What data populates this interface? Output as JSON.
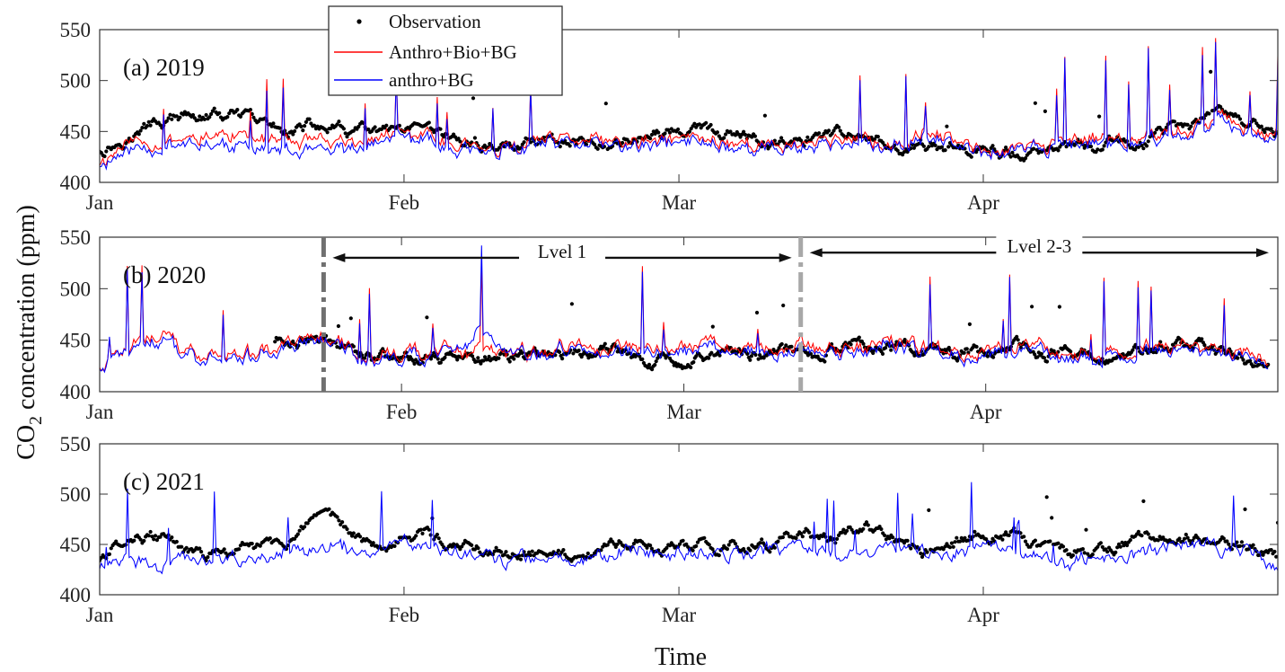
{
  "figure": {
    "ylabel_main": "CO",
    "ylabel_sub": "2",
    "ylabel_rest": " concentration (ppm)",
    "xlabel": "Time"
  },
  "legend": {
    "position": "top, above panel (a), left of centre",
    "entries": [
      {
        "label": "Observation",
        "style": "dots",
        "color": "#000000"
      },
      {
        "label": "Anthro+Bio+BG",
        "style": "line",
        "color": "#ff0000"
      },
      {
        "label": "anthro+BG",
        "style": "line",
        "color": "#0000ff"
      }
    ]
  },
  "colors": {
    "observation": "#000000",
    "anthro_bio_bg": "#ff0000",
    "anthro_bg": "#0000ff",
    "level1_line": "#707070",
    "level23_line": "#a8a8a8"
  },
  "chart_data": [
    {
      "type": "line",
      "panel_label": "(a) 2019",
      "x_axis": "day of year, hourly data",
      "xlim": [
        1,
        121
      ],
      "x_ticks": [
        {
          "label": "Jan",
          "value": 1
        },
        {
          "label": "Feb",
          "value": 32
        },
        {
          "label": "Mar",
          "value": 60
        },
        {
          "label": "Apr",
          "value": 91
        }
      ],
      "ylim": [
        400,
        550
      ],
      "y_ticks": [
        400,
        450,
        500,
        550
      ],
      "grid": false,
      "series": [
        {
          "name": "Observation",
          "style": "dots",
          "x": [
            1,
            4,
            7,
            10,
            13,
            16,
            19,
            22,
            25,
            28,
            31,
            34,
            37,
            40,
            43,
            46,
            49,
            52,
            55,
            58,
            61,
            64,
            67,
            70,
            73,
            76,
            79,
            82,
            85,
            88,
            91,
            94,
            97,
            100,
            103,
            106,
            109,
            112,
            115,
            118,
            121
          ],
          "values": [
            432,
            445,
            458,
            463,
            465,
            460,
            452,
            455,
            450,
            448,
            446,
            444,
            440,
            436,
            438,
            443,
            441,
            442,
            444,
            446,
            452,
            447,
            440,
            438,
            441,
            443,
            440,
            438,
            436,
            434,
            430,
            428,
            430,
            432,
            436,
            440,
            445,
            452,
            470,
            460,
            445
          ]
        },
        {
          "name": "Anthro+Bio+BG",
          "style": "line",
          "x": [
            1,
            4,
            7,
            10,
            13,
            16,
            19,
            22,
            25,
            28,
            31,
            34,
            37,
            40,
            43,
            46,
            49,
            52,
            55,
            58,
            61,
            64,
            67,
            70,
            73,
            76,
            79,
            82,
            85,
            88,
            91,
            94,
            97,
            100,
            103,
            106,
            109,
            112,
            115,
            118,
            121
          ],
          "values": [
            420,
            440,
            440,
            445,
            448,
            445,
            440,
            438,
            435,
            440,
            450,
            445,
            438,
            430,
            432,
            440,
            442,
            440,
            438,
            440,
            445,
            442,
            438,
            436,
            440,
            445,
            438,
            440,
            450,
            440,
            430,
            432,
            440,
            438,
            445,
            440,
            448,
            450,
            470,
            455,
            450
          ]
        },
        {
          "name": "anthro+BG",
          "style": "line",
          "x": [
            1,
            4,
            7,
            10,
            13,
            16,
            19,
            22,
            25,
            28,
            31,
            34,
            37,
            40,
            43,
            46,
            49,
            52,
            55,
            58,
            61,
            64,
            67,
            70,
            73,
            76,
            79,
            82,
            85,
            88,
            91,
            94,
            97,
            100,
            103,
            106,
            109,
            112,
            115,
            118,
            121
          ],
          "values": [
            418,
            432,
            436,
            440,
            438,
            435,
            430,
            428,
            428,
            435,
            446,
            440,
            432,
            428,
            430,
            436,
            438,
            436,
            434,
            436,
            440,
            438,
            434,
            432,
            436,
            440,
            434,
            438,
            445,
            436,
            428,
            430,
            436,
            434,
            440,
            436,
            444,
            446,
            465,
            450,
            445
          ]
        }
      ]
    },
    {
      "type": "line",
      "panel_label": "(b) 2020",
      "x_axis": "day of year, hourly data",
      "xlim": [
        1,
        122
      ],
      "x_ticks": [
        {
          "label": "Jan",
          "value": 1
        },
        {
          "label": "Feb",
          "value": 32
        },
        {
          "label": "Mar",
          "value": 61
        },
        {
          "label": "Apr",
          "value": 92
        }
      ],
      "ylim": [
        400,
        550
      ],
      "y_ticks": [
        400,
        450,
        500,
        550
      ],
      "grid": false,
      "annotations": [
        {
          "text": "Lvel 1",
          "x_start": 24,
          "x_end": 73,
          "y": 530
        },
        {
          "text": "Lvel 2-3",
          "x_start": 73,
          "x_end": 122,
          "y": 535
        }
      ],
      "vertical_lines": [
        {
          "x": 24,
          "style": "dash-dot",
          "color": "#707070"
        },
        {
          "x": 73,
          "style": "dash-dot",
          "color": "#a8a8a8"
        }
      ],
      "series": [
        {
          "name": "Observation",
          "style": "dots",
          "x": [
            19,
            22,
            25,
            28,
            31,
            34,
            37,
            40,
            43,
            46,
            49,
            52,
            55,
            58,
            61,
            64,
            67,
            70,
            73,
            76,
            79,
            82,
            85,
            88,
            91,
            94,
            97,
            100,
            103,
            106,
            109,
            112,
            115,
            118,
            121
          ],
          "values": [
            450,
            452,
            445,
            438,
            436,
            434,
            432,
            434,
            433,
            436,
            440,
            435,
            440,
            432,
            430,
            438,
            436,
            442,
            438,
            445,
            450,
            445,
            440,
            436,
            438,
            442,
            438,
            436,
            434,
            438,
            440,
            445,
            440,
            436,
            430
          ]
        },
        {
          "name": "Anthro+Bio+BG",
          "style": "line",
          "x": [
            1,
            4,
            7,
            10,
            13,
            16,
            19,
            22,
            25,
            28,
            31,
            34,
            37,
            40,
            43,
            46,
            49,
            52,
            55,
            58,
            61,
            64,
            67,
            70,
            73,
            76,
            79,
            82,
            85,
            88,
            91,
            94,
            97,
            100,
            103,
            106,
            109,
            112,
            115,
            118,
            121
          ],
          "values": [
            425,
            445,
            455,
            440,
            436,
            440,
            445,
            450,
            448,
            432,
            438,
            436,
            440,
            438,
            436,
            440,
            445,
            440,
            446,
            440,
            440,
            445,
            436,
            440,
            445,
            440,
            445,
            450,
            444,
            440,
            438,
            442,
            445,
            440,
            436,
            440,
            445,
            450,
            440,
            438,
            425
          ]
        },
        {
          "name": "anthro+BG",
          "style": "line",
          "x": [
            1,
            4,
            7,
            10,
            13,
            16,
            19,
            22,
            25,
            28,
            31,
            34,
            37,
            40,
            43,
            46,
            49,
            52,
            55,
            58,
            61,
            64,
            67,
            70,
            73,
            76,
            79,
            82,
            85,
            88,
            91,
            94,
            97,
            100,
            103,
            106,
            109,
            112,
            115,
            118,
            121
          ],
          "values": [
            424,
            442,
            450,
            436,
            432,
            436,
            440,
            446,
            446,
            430,
            434,
            432,
            438,
            455,
            436,
            438,
            442,
            436,
            440,
            436,
            436,
            440,
            432,
            436,
            440,
            436,
            440,
            446,
            440,
            436,
            434,
            438,
            440,
            436,
            432,
            436,
            440,
            446,
            436,
            434,
            422
          ]
        }
      ]
    },
    {
      "type": "line",
      "panel_label": "(c) 2021",
      "x_axis": "day of year, hourly data",
      "xlim": [
        1,
        121
      ],
      "x_ticks": [
        {
          "label": "Jan",
          "value": 1
        },
        {
          "label": "Feb",
          "value": 32
        },
        {
          "label": "Mar",
          "value": 60
        },
        {
          "label": "Apr",
          "value": 91
        }
      ],
      "ylim": [
        400,
        550
      ],
      "y_ticks": [
        400,
        450,
        500,
        550
      ],
      "grid": false,
      "series": [
        {
          "name": "Observation",
          "style": "dots",
          "x": [
            1,
            4,
            7,
            10,
            13,
            16,
            19,
            22,
            25,
            28,
            31,
            34,
            37,
            40,
            43,
            46,
            49,
            52,
            55,
            58,
            61,
            64,
            67,
            70,
            73,
            76,
            79,
            82,
            85,
            88,
            91,
            94,
            97,
            100,
            103,
            106,
            109,
            112,
            115,
            118,
            121
          ],
          "values": [
            435,
            462,
            458,
            440,
            438,
            445,
            450,
            462,
            470,
            455,
            455,
            462,
            450,
            445,
            440,
            438,
            435,
            440,
            450,
            445,
            450,
            448,
            450,
            455,
            460,
            452,
            465,
            455,
            445,
            450,
            465,
            460,
            445,
            440,
            445,
            452,
            455,
            460,
            455,
            452,
            432
          ]
        },
        {
          "name": "anthro+BG",
          "style": "line",
          "x": [
            1,
            4,
            7,
            10,
            13,
            16,
            19,
            22,
            25,
            28,
            31,
            34,
            37,
            40,
            43,
            46,
            49,
            52,
            55,
            58,
            61,
            64,
            67,
            70,
            73,
            76,
            79,
            82,
            85,
            88,
            91,
            94,
            97,
            100,
            103,
            106,
            109,
            112,
            115,
            118,
            121
          ],
          "values": [
            430,
            436,
            428,
            434,
            436,
            440,
            442,
            446,
            448,
            440,
            448,
            450,
            440,
            438,
            436,
            434,
            432,
            436,
            446,
            438,
            444,
            440,
            442,
            446,
            448,
            440,
            445,
            450,
            440,
            440,
            446,
            444,
            436,
            434,
            438,
            442,
            445,
            452,
            446,
            444,
            426
          ]
        }
      ]
    }
  ]
}
